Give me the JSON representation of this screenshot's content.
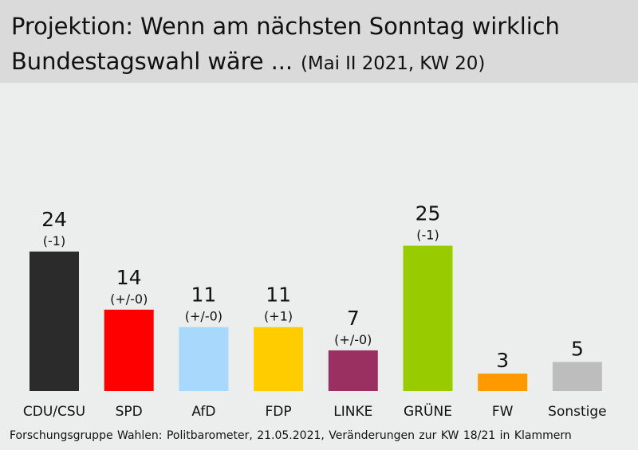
{
  "header": {
    "title_line1": "Projektion: Wenn am nächsten Sonntag wirklich",
    "title_line2": "Bundestagswahl wäre ...",
    "subtitle": "(Mai II 2021, KW 20)"
  },
  "footer": {
    "source": "Forschungsgruppe Wahlen: Politbarometer, 21.05.2021, Veränderungen zur KW 18/21 in Klammern"
  },
  "chart_data": {
    "type": "bar",
    "title": "Projektion: Wenn am nächsten Sonntag wirklich Bundestagswahl wäre ... (Mai II 2021, KW 20)",
    "xlabel": "",
    "ylabel": "",
    "grid": false,
    "legend": "none",
    "ylim": [
      0,
      25
    ],
    "categories": [
      "CDU/CSU",
      "SPD",
      "AfD",
      "FDP",
      "LINKE",
      "GRÜNE",
      "FW",
      "Sonstige"
    ],
    "values": [
      24,
      14,
      11,
      11,
      7,
      25,
      3,
      5
    ],
    "changes": [
      "(-1)",
      "(+/-0)",
      "(+/-0)",
      "(+1)",
      "(+/-0)",
      "(-1)",
      "",
      ""
    ],
    "colors": [
      "#2b2b2b",
      "#ff0000",
      "#a8d8fb",
      "#ffcc00",
      "#9a2f62",
      "#99cc00",
      "#ff9900",
      "#bdbdbd"
    ]
  }
}
